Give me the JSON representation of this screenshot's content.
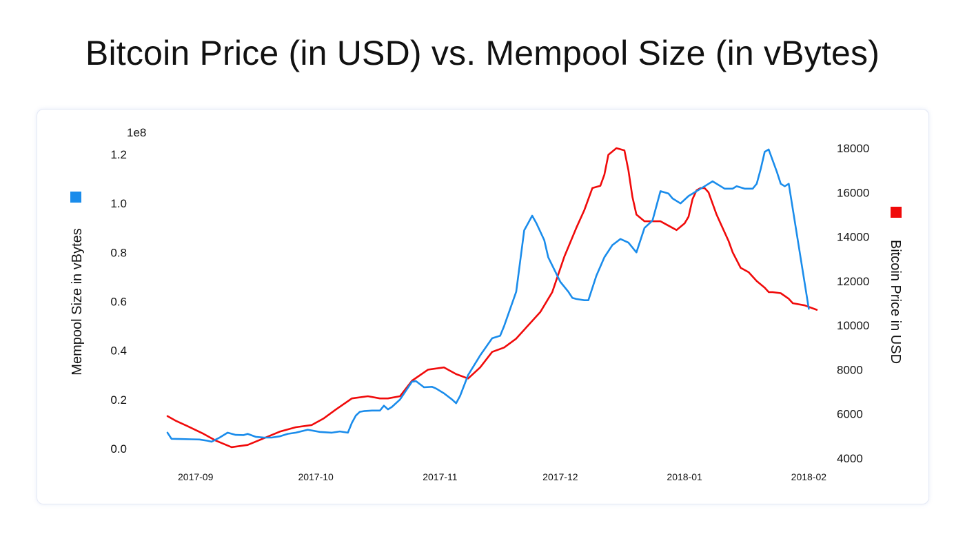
{
  "title": "Bitcoin Price (in USD) vs. Mempool Size (in vBytes)",
  "colors": {
    "mempool": "#1a8ceb",
    "price": "#f00a0a"
  },
  "chart_data": {
    "type": "line",
    "title": "Bitcoin Price (in USD) vs. Mempool Size (in vBytes)",
    "xlim": [
      "2017-08-25",
      "2018-02-03"
    ],
    "x_ticks": [
      "2017-09",
      "2017-10",
      "2017-11",
      "2017-12",
      "2018-01",
      "2018-02"
    ],
    "x_tick_dates": [
      "2017-09-01",
      "2017-10-01",
      "2017-11-01",
      "2017-12-01",
      "2018-01-01",
      "2018-02-01"
    ],
    "y_left": {
      "label": "Mempool Size in vBytes",
      "offset_text": "1e8",
      "ylim": [
        0,
        1.22
      ],
      "ticks": [
        "0.0",
        "0.2",
        "0.4",
        "0.6",
        "0.8",
        "1.0",
        "1.2"
      ],
      "tick_values": [
        0,
        0.2,
        0.4,
        0.6,
        0.8,
        1.0,
        1.2
      ]
    },
    "y_right": {
      "label": "Bitcoin Price in USD",
      "ylim": [
        4000,
        18000
      ],
      "ticks": [
        "4000",
        "6000",
        "8000",
        "10000",
        "12000",
        "14000",
        "16000",
        "18000"
      ],
      "tick_values": [
        4000,
        6000,
        8000,
        10000,
        12000,
        14000,
        16000,
        18000
      ]
    },
    "series": [
      {
        "name": "Mempool Size in vBytes",
        "axis": "left",
        "x": [
          "2017-08-25",
          "2017-08-26",
          "2017-08-28",
          "2017-08-31",
          "2017-09-02",
          "2017-09-04",
          "2017-09-05",
          "2017-09-07",
          "2017-09-09",
          "2017-09-11",
          "2017-09-13",
          "2017-09-14",
          "2017-09-16",
          "2017-09-18",
          "2017-09-20",
          "2017-09-22",
          "2017-09-24",
          "2017-09-26",
          "2017-09-29",
          "2017-10-02",
          "2017-10-05",
          "2017-10-07",
          "2017-10-09",
          "2017-10-10",
          "2017-10-11",
          "2017-10-12",
          "2017-10-13",
          "2017-10-15",
          "2017-10-17",
          "2017-10-18",
          "2017-10-19",
          "2017-10-20",
          "2017-10-22",
          "2017-10-25",
          "2017-10-26",
          "2017-10-28",
          "2017-10-30",
          "2017-10-31",
          "2017-11-02",
          "2017-11-04",
          "2017-11-05",
          "2017-11-06",
          "2017-11-08",
          "2017-11-11",
          "2017-11-14",
          "2017-11-16",
          "2017-11-17",
          "2017-11-20",
          "2017-11-22",
          "2017-11-24",
          "2017-11-25",
          "2017-11-27",
          "2017-11-28",
          "2017-12-01",
          "2017-12-03",
          "2017-12-04",
          "2017-12-05",
          "2017-12-07",
          "2017-12-08",
          "2017-12-10",
          "2017-12-12",
          "2017-12-14",
          "2017-12-16",
          "2017-12-18",
          "2017-12-20",
          "2017-12-22",
          "2017-12-24",
          "2017-12-26",
          "2017-12-28",
          "2017-12-29",
          "2017-12-31",
          "2018-01-02",
          "2018-01-04",
          "2018-01-06",
          "2018-01-08",
          "2018-01-11",
          "2018-01-13",
          "2018-01-14",
          "2018-01-16",
          "2018-01-18",
          "2018-01-19",
          "2018-01-20",
          "2018-01-21",
          "2018-01-22",
          "2018-01-24",
          "2018-01-25",
          "2018-01-26",
          "2018-01-27",
          "2018-02-01"
        ],
        "values": [
          0.065,
          0.04,
          0.039,
          0.038,
          0.037,
          0.032,
          0.028,
          0.045,
          0.065,
          0.056,
          0.055,
          0.06,
          0.048,
          0.045,
          0.045,
          0.05,
          0.06,
          0.065,
          0.077,
          0.068,
          0.065,
          0.07,
          0.065,
          0.105,
          0.135,
          0.15,
          0.153,
          0.155,
          0.155,
          0.175,
          0.16,
          0.17,
          0.2,
          0.273,
          0.275,
          0.25,
          0.252,
          0.245,
          0.225,
          0.2,
          0.185,
          0.215,
          0.3,
          0.38,
          0.45,
          0.46,
          0.5,
          0.64,
          0.89,
          0.95,
          0.92,
          0.85,
          0.78,
          0.68,
          0.64,
          0.615,
          0.61,
          0.605,
          0.605,
          0.705,
          0.78,
          0.83,
          0.855,
          0.84,
          0.8,
          0.9,
          0.93,
          1.05,
          1.04,
          1.02,
          1.0,
          1.03,
          1.05,
          1.07,
          1.09,
          1.06,
          1.06,
          1.07,
          1.06,
          1.06,
          1.08,
          1.14,
          1.21,
          1.22,
          1.13,
          1.08,
          1.07,
          1.08,
          0.57
        ]
      },
      {
        "name": "Bitcoin Price in USD",
        "axis": "right",
        "x": [
          "2017-08-25",
          "2017-08-27",
          "2017-08-30",
          "2017-09-03",
          "2017-09-06",
          "2017-09-10",
          "2017-09-14",
          "2017-09-18",
          "2017-09-22",
          "2017-09-26",
          "2017-09-30",
          "2017-10-03",
          "2017-10-06",
          "2017-10-10",
          "2017-10-14",
          "2017-10-17",
          "2017-10-19",
          "2017-10-22",
          "2017-10-25",
          "2017-10-29",
          "2017-11-02",
          "2017-11-05",
          "2017-11-08",
          "2017-11-11",
          "2017-11-14",
          "2017-11-17",
          "2017-11-20",
          "2017-11-23",
          "2017-11-26",
          "2017-11-29",
          "2017-12-02",
          "2017-12-05",
          "2017-12-07",
          "2017-12-09",
          "2017-12-11",
          "2017-12-12",
          "2017-12-13",
          "2017-12-15",
          "2017-12-17",
          "2017-12-18",
          "2017-12-19",
          "2017-12-20",
          "2017-12-22",
          "2017-12-26",
          "2017-12-27",
          "2017-12-29",
          "2017-12-30",
          "2018-01-01",
          "2018-01-02",
          "2018-01-03",
          "2018-01-04",
          "2018-01-05",
          "2018-01-06",
          "2018-01-07",
          "2018-01-08",
          "2018-01-09",
          "2018-01-10",
          "2018-01-12",
          "2018-01-13",
          "2018-01-15",
          "2018-01-17",
          "2018-01-19",
          "2018-01-21",
          "2018-01-22",
          "2018-01-23",
          "2018-01-25",
          "2018-01-27",
          "2018-01-28",
          "2018-01-31",
          "2018-02-03"
        ],
        "values": [
          5900,
          5700,
          5450,
          5100,
          4800,
          4500,
          4600,
          4900,
          5200,
          5400,
          5500,
          5800,
          6200,
          6700,
          6800,
          6700,
          6700,
          6800,
          7500,
          8000,
          8100,
          7800,
          7600,
          8100,
          8800,
          9000,
          9400,
          10000,
          10600,
          11500,
          13100,
          14400,
          15200,
          16200,
          16300,
          16800,
          17700,
          18000,
          17900,
          17000,
          15800,
          15000,
          14700,
          14700,
          14600,
          14400,
          14300,
          14600,
          14900,
          15700,
          16100,
          16200,
          16200,
          16000,
          15500,
          15000,
          14600,
          13800,
          13300,
          12600,
          12400,
          12000,
          11700,
          11500,
          11500,
          11450,
          11200,
          11000,
          10900,
          10700
        ]
      }
    ]
  }
}
